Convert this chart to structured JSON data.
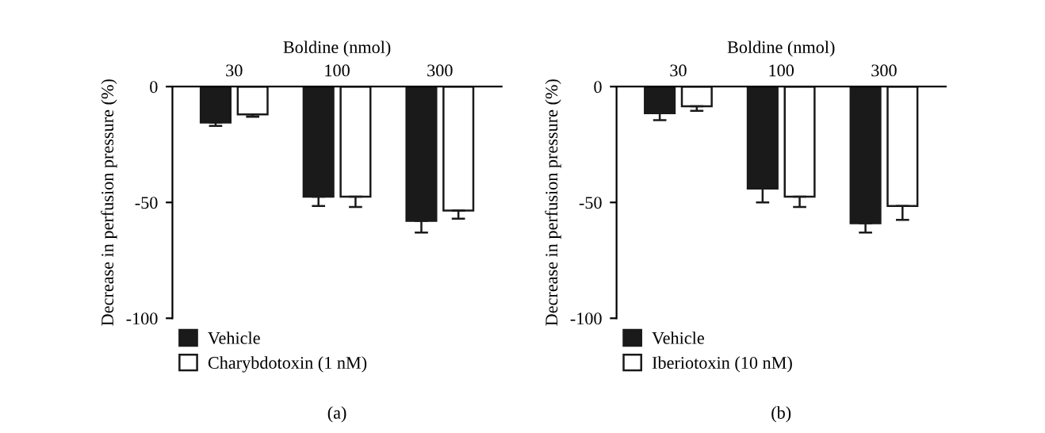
{
  "chart_data": [
    {
      "type": "bar",
      "xlabel": "Boldine (nmol)",
      "ylabel": "Decrease in perfusion pressure (%)",
      "categories": [
        "30",
        "100",
        "300"
      ],
      "series": [
        {
          "name": "Vehicle",
          "color": "#1a1a1a",
          "values": [
            -15.5,
            -47.5,
            -58
          ],
          "errors": [
            [
              -17,
              -15.5
            ],
            [
              -51.5,
              -47.5
            ],
            [
              -63,
              -58
            ]
          ]
        },
        {
          "name": "Charybdotoxin (1 nM)",
          "color": "#ffffff",
          "values": [
            -12,
            -47.5,
            -53.5
          ],
          "errors": [
            [
              -13,
              -12
            ],
            [
              -52,
              -47.5
            ],
            [
              -57,
              -53.5
            ]
          ]
        }
      ],
      "ylim": [
        -100,
        0
      ],
      "yticks": [
        -100,
        -50,
        0
      ],
      "legend": "bottom left",
      "grid": false,
      "annotations": [
        "(a)"
      ]
    },
    {
      "type": "bar",
      "xlabel": "Boldine (nmol)",
      "ylabel": "Decrease in perfusion pressure (%)",
      "categories": [
        "30",
        "100",
        "300"
      ],
      "series": [
        {
          "name": "Vehicle",
          "color": "#1a1a1a",
          "values": [
            -11.5,
            -44,
            -59
          ],
          "errors": [
            [
              -14.5,
              -11.5
            ],
            [
              -50,
              -44
            ],
            [
              -63,
              -59
            ]
          ]
        },
        {
          "name": "Iberiotoxin (10 nM)",
          "color": "#ffffff",
          "values": [
            -8.5,
            -47.5,
            -51.5
          ],
          "errors": [
            [
              -10.5,
              -8.5
            ],
            [
              -52,
              -47.5
            ],
            [
              -57.5,
              -51.5
            ]
          ]
        }
      ],
      "ylim": [
        -100,
        0
      ],
      "yticks": [
        -100,
        -50,
        0
      ],
      "legend": "bottom left",
      "grid": false,
      "annotations": [
        "(b)"
      ]
    }
  ]
}
